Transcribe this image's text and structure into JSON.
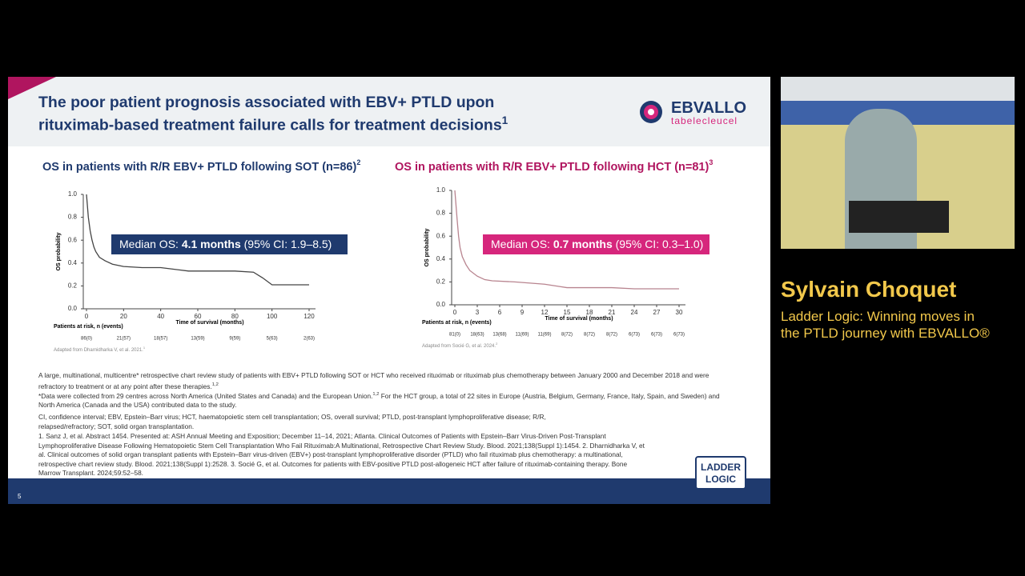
{
  "slide": {
    "title_line1": "The poor patient prognosis associated with EBV+ PTLD upon",
    "title_line2": "rituximab-based treatment failure calls for treatment decisions",
    "title_ref": "1",
    "brand": "EBVALLO",
    "brand_sub": "tabelecleucel",
    "logo_line1": "LADDER",
    "logo_line2": "LOGIC",
    "page_number": "5",
    "notes": {
      "p1": "A large, multinational, multicentre* retrospective chart review study of patients with EBV+ PTLD following SOT or HCT who received rituximab or rituximab plus chemotherapy between January 2000 and December 2018 and were refractory to treatment or at any point after these therapies.",
      "p1_ref": "1,2",
      "p2a": "*Data were collected from 29 centres across North America (United States and Canada) and the European Union.",
      "p2_ref": "1,2",
      "p2b": " For the HCT group, a total of 22 sites in Europe (Austria, Belgium, Germany, France, Italy, Spain, and Sweden) and North America (Canada and the USA) contributed data to the study.",
      "abbrev": "CI, confidence interval; EBV, Epstein–Barr virus; HCT, haematopoietic stem cell transplantation; OS, overall survival; PTLD, post-transplant lymphoproliferative disease; R/R, relapsed/refractory; SOT, solid organ transplantation.",
      "refs": "1. Sanz J, et al. Abstract 1454. Presented at: ASH Annual Meeting and Exposition; December 11–14, 2021; Atlanta. Clinical Outcomes of Patients with Epstein–Barr Virus-Driven Post-Transplant Lymphoproliferative Disease Following Hematopoietic Stem Cell Transplantation Who Fail Rituximab:A Multinational, Retrospective Chart Review Study. Blood. 2021;138(Suppl 1):1454. 2. Dharnidharka V, et al. Clinical outcomes of solid organ transplant patients with Epstein–Barr virus-driven (EBV+) post-transplant lymphoproliferative disorder (PTLD) who fail rituximab plus chemotherapy: a multinational, retrospective chart review study. Blood. 2021;138(Suppl 1):2528. 3. Socié G, et al. Outcomes for patients with EBV-positive PTLD post-allogeneic HCT after failure of rituximab-containing therapy. Bone Marrow Transplant. 2024;59:52–58."
    }
  },
  "speaker": {
    "name": "Sylvain Choquet",
    "session_line1": "Ladder Logic: Winning moves in",
    "session_line2": "the PTLD journey with EBVALLO®"
  },
  "chart_data": [
    {
      "type": "line",
      "title": "OS in patients with R/R EBV+ PTLD following SOT (n=86)",
      "title_ref": "2",
      "title_color": "#1f3a6e",
      "x_label": "Time of survival (months)",
      "y_label": "OS probability",
      "at_risk_label": "Patients at risk, n (events)",
      "at_risk": [
        "86(0)",
        "21(57)",
        "18(57)",
        "13(59)",
        "9(59)",
        "5(63)",
        "2(63)"
      ],
      "source": "Adapted from Dharnidharka V, et al. 2021.",
      "source_ref": "1",
      "annotation": {
        "prefix": "Median OS: ",
        "value": "4.1 months",
        "suffix": " (95% CI: 1.9–8.5)",
        "color": "#1f3a6e"
      },
      "x": [
        0,
        1,
        2,
        3,
        4,
        5,
        7,
        10,
        14,
        20,
        30,
        40,
        50,
        55,
        60,
        70,
        80,
        90,
        95,
        100,
        110,
        120
      ],
      "series": [
        {
          "color": "#444444",
          "values": [
            1,
            0.8,
            0.68,
            0.6,
            0.54,
            0.5,
            0.45,
            0.42,
            0.39,
            0.37,
            0.36,
            0.36,
            0.34,
            0.33,
            0.33,
            0.33,
            0.33,
            0.32,
            0.27,
            0.21,
            0.21,
            0.21
          ]
        }
      ],
      "xlim": [
        0,
        120
      ],
      "ylim": [
        0,
        1
      ],
      "xticks": [
        0,
        20,
        40,
        60,
        80,
        100,
        120
      ],
      "yticks": [
        {
          "value": 0,
          "label": "0.0"
        },
        0.2,
        0.4,
        0.6,
        0.8,
        {
          "value": 1,
          "label": "1.0"
        }
      ]
    },
    {
      "type": "line",
      "title": "OS in patients with R/R EBV+ PTLD following HCT (n=81)",
      "title_ref": "3",
      "title_color": "#b0155f",
      "x_label": "Time of survival (months)",
      "y_label": "OS probability",
      "at_risk_label": "Patients at risk, n (events)",
      "at_risk": [
        "81(0)",
        "18(63)",
        "13(68)",
        "11(69)",
        "11(69)",
        "8(72)",
        "8(72)",
        "8(72)",
        "6(73)",
        "6(73)",
        "6(73)"
      ],
      "source": "Adapted from Socié G, et al. 2024.",
      "source_ref": "2",
      "annotation": {
        "prefix": "Median OS: ",
        "value": "0.7 months",
        "suffix": " (95% CI: 0.3–1.0)",
        "color": "#d6267c"
      },
      "x": [
        0,
        0.3,
        0.5,
        0.7,
        1,
        1.5,
        2,
        3,
        4,
        5,
        8,
        12,
        14,
        15,
        18,
        21,
        24,
        27,
        30
      ],
      "series": [
        {
          "color": "#b8848f",
          "values": [
            1,
            0.75,
            0.6,
            0.5,
            0.42,
            0.35,
            0.3,
            0.25,
            0.22,
            0.21,
            0.2,
            0.18,
            0.16,
            0.15,
            0.15,
            0.15,
            0.14,
            0.14,
            0.14
          ]
        }
      ],
      "xlim": [
        0,
        30
      ],
      "ylim": [
        0,
        1
      ],
      "xticks": [
        0,
        3,
        6,
        9,
        12,
        15,
        18,
        21,
        24,
        27,
        30
      ],
      "yticks": [
        {
          "value": 0,
          "label": "0.0"
        },
        0.2,
        0.4,
        0.6,
        0.8,
        {
          "value": 1,
          "label": "1.0"
        }
      ]
    }
  ]
}
